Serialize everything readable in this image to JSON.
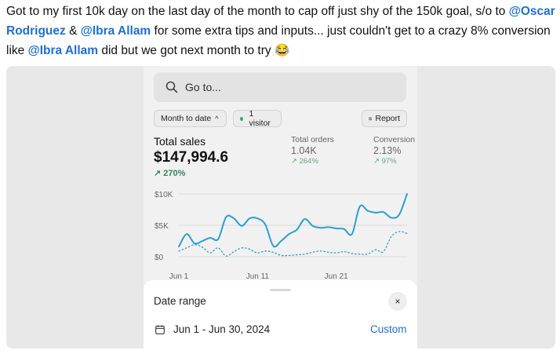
{
  "post": {
    "text_1": "Got to my first 10k day on the last day of the month to cap off just shy of the 150k goal, s/o to ",
    "mention_1": "@Oscar Rodriguez",
    "text_2": " & ",
    "mention_2": "@Ibra Allam",
    "text_3": " for some extra tips and inputs... just couldn't get to a crazy 8% conversion like ",
    "mention_3": "@Ibra Allam",
    "text_4": " did but we got next month to try ",
    "emoji": "😂"
  },
  "search": {
    "placeholder": "Go to..."
  },
  "filters": {
    "period_label": "Month to date",
    "period_chevron": "^",
    "visitors_label": "1 visitor",
    "report_label": "Report"
  },
  "kpis": {
    "total_sales": {
      "label": "Total sales",
      "value": "$147,994.6",
      "delta": "↗ 270%"
    },
    "total_orders": {
      "label": "Total orders",
      "value": "1.04K",
      "delta": "↗ 264%"
    },
    "conversion": {
      "label": "Conversion r",
      "value": "2.13%",
      "delta": "↗ 97%"
    }
  },
  "colors": {
    "accent": "#1d6fd6",
    "series_current": "#2a9fd6",
    "series_previous": "#2a9fd6",
    "positive": "#2e8b57"
  },
  "chart_data": {
    "type": "line",
    "x_tick_labels": [
      "Jun 1",
      "Jun 11",
      "Jun 21"
    ],
    "y_tick_labels": [
      "$10K",
      "$5K",
      "$0"
    ],
    "ylim": [
      0,
      10000
    ],
    "x": [
      1,
      2,
      3,
      4,
      5,
      6,
      7,
      8,
      9,
      10,
      11,
      12,
      13,
      14,
      15,
      16,
      17,
      18,
      19,
      20,
      21,
      22,
      23,
      24,
      25,
      26,
      27,
      28,
      29,
      30
    ],
    "series": [
      {
        "style": "solid",
        "values": [
          1600,
          3600,
          2100,
          2500,
          3000,
          2800,
          6300,
          6100,
          4900,
          6100,
          6100,
          5100,
          1700,
          2500,
          3600,
          4300,
          6000,
          4900,
          4600,
          4700,
          4500,
          4400,
          3600,
          8000,
          7300,
          7000,
          7100,
          6200,
          6700,
          10000
        ]
      },
      {
        "style": "dotted",
        "values": [
          900,
          1400,
          1900,
          1500,
          600,
          1400,
          100,
          800,
          1400,
          1200,
          600,
          900,
          700,
          200,
          200,
          300,
          400,
          700,
          900,
          700,
          600,
          800,
          500,
          400,
          400,
          1100,
          800,
          3200,
          4000,
          3700
        ]
      }
    ]
  },
  "date_sheet": {
    "title": "Date range",
    "close": "×",
    "range": "Jun 1 - Jun 30, 2024",
    "custom_label": "Custom"
  }
}
